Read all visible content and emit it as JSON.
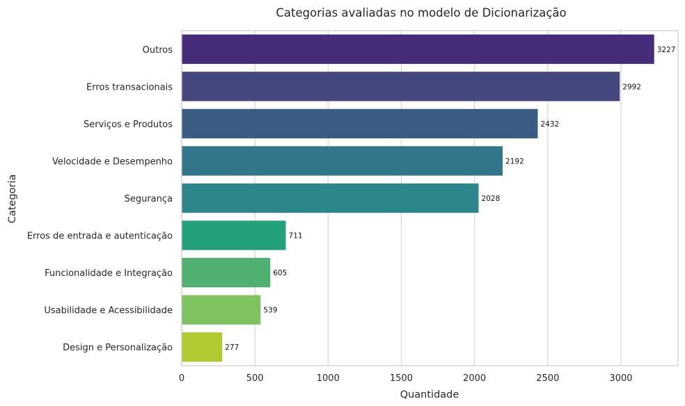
{
  "chart_data": {
    "type": "bar",
    "orientation": "horizontal",
    "title": "Categorias avaliadas no modelo de Dicionarização",
    "xlabel": "Quantidade",
    "ylabel": "Categoria",
    "xlim": [
      0,
      3390
    ],
    "xticks": [
      0,
      500,
      1000,
      1500,
      2000,
      2500,
      3000
    ],
    "grid": "vertical",
    "legend": "none",
    "categories": [
      "Outros",
      "Erros transacionais",
      "Serviços e Produtos",
      "Velocidade e Desempenho",
      "Segurança",
      "Erros de entrada e autenticação",
      "Funcionalidade e Integração",
      "Usabilidade e Acessibilidade",
      "Design e Personalização"
    ],
    "values": [
      3227,
      2992,
      2432,
      2192,
      2028,
      711,
      605,
      539,
      277
    ],
    "colors": [
      "#472c7a",
      "#44487f",
      "#3b5c85",
      "#31768a",
      "#2c868a",
      "#23a07c",
      "#4fb072",
      "#7ec360",
      "#b2c932"
    ]
  }
}
